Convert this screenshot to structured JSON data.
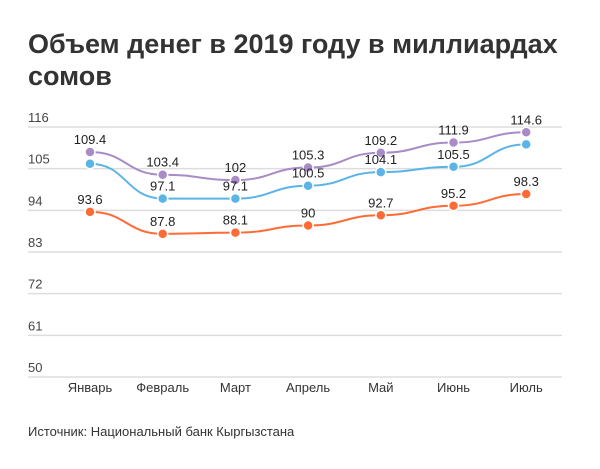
{
  "chart_data": {
    "type": "line",
    "title": "Объем денег в 2019 году в миллиардах сомов",
    "source": "Источник: Национальный банк Кыргызстана",
    "xlabel": "",
    "ylabel": "",
    "ylim": [
      50,
      116
    ],
    "yticks": [
      "116",
      "105",
      "94",
      "83",
      "72",
      "61",
      "50"
    ],
    "categories": [
      "Январь",
      "Февраль",
      "Март",
      "Апрель",
      "Май",
      "Июнь",
      "Июль"
    ],
    "grid": true,
    "series": [
      {
        "name": "purple",
        "color": "#a88bc7",
        "values": [
          109.4,
          103.4,
          102,
          105.3,
          109.2,
          111.9,
          114.6
        ],
        "labels": [
          "109.4",
          "103.4",
          "102",
          "105.3",
          "109.2",
          "111.9",
          "114.6"
        ]
      },
      {
        "name": "blue",
        "color": "#5ab4e5",
        "values": [
          106.3,
          97.1,
          97.1,
          100.5,
          104.1,
          105.5,
          111.4
        ],
        "labels": [
          "",
          "97.1",
          "97.1",
          "100.5",
          "104.1",
          "105.5",
          ""
        ]
      },
      {
        "name": "orange",
        "color": "#ff6b35",
        "values": [
          93.6,
          87.8,
          88.1,
          90,
          92.7,
          95.2,
          98.3
        ],
        "labels": [
          "93.6",
          "87.8",
          "88.1",
          "90",
          "92.7",
          "95.2",
          "98.3"
        ]
      }
    ]
  }
}
